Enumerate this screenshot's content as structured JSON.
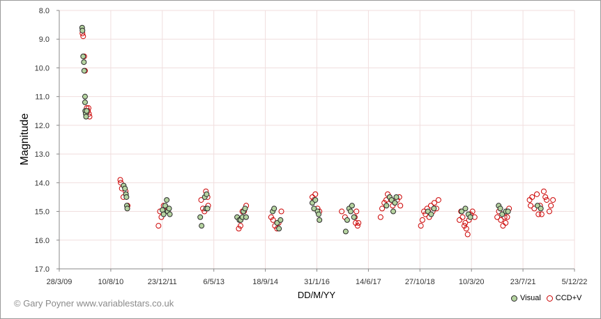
{
  "credit": "© Gary Poyner www.variablestars.co.uk",
  "chart_data": {
    "type": "scatter",
    "title": "",
    "xlabel": "DD/M/YY",
    "ylabel": "Magnitude",
    "y_inverted": true,
    "ylim": [
      17.0,
      8.0
    ],
    "y_ticks": [
      "8.0",
      "9.0",
      "10.0",
      "11.0",
      "12.0",
      "13.0",
      "14.0",
      "15.0",
      "16.0",
      "17.0"
    ],
    "x_ticks": [
      "28/3/09",
      "10/8/10",
      "23/12/11",
      "6/5/13",
      "18/9/14",
      "31/1/16",
      "14/6/17",
      "27/10/18",
      "10/3/20",
      "23/7/21",
      "5/12/22"
    ],
    "grid": true,
    "legend_position": "bottom-right",
    "series": [
      {
        "name": "Visual",
        "marker": "filled-circle",
        "fill": "#b5d3a0",
        "edge": "#2a2a2a",
        "points": [
          [
            "2009-11-05",
            8.6
          ],
          [
            "2009-11-08",
            8.7
          ],
          [
            "2009-11-15",
            9.6
          ],
          [
            "2009-11-22",
            9.8
          ],
          [
            "2009-11-25",
            10.1
          ],
          [
            "2009-12-03",
            11.0
          ],
          [
            "2009-12-03",
            11.2
          ],
          [
            "2009-12-05",
            11.5
          ],
          [
            "2009-12-10",
            11.6
          ],
          [
            "2009-12-13",
            11.7
          ],
          [
            "2009-12-19",
            11.5
          ],
          [
            "2010-12-13",
            14.1
          ],
          [
            "2010-12-25",
            14.2
          ],
          [
            "2011-01-04",
            14.4
          ],
          [
            "2011-01-09",
            14.5
          ],
          [
            "2011-01-13",
            14.8
          ],
          [
            "2011-01-17",
            14.9
          ],
          [
            "2011-12-25",
            14.95
          ],
          [
            "2012-01-05",
            15.1
          ],
          [
            "2012-01-20",
            14.8
          ],
          [
            "2012-02-04",
            14.6
          ],
          [
            "2012-02-14",
            15.0
          ],
          [
            "2012-02-27",
            14.9
          ],
          [
            "2012-03-05",
            15.1
          ],
          [
            "2012-12-25",
            15.2
          ],
          [
            "2013-01-07",
            15.5
          ],
          [
            "2013-02-07",
            14.5
          ],
          [
            "2013-02-20",
            14.9
          ],
          [
            "2013-03-05",
            14.9
          ],
          [
            "2013-02-25",
            14.4
          ],
          [
            "2013-12-18",
            15.2
          ],
          [
            "2014-01-09",
            15.3
          ],
          [
            "2014-01-21",
            15.3
          ],
          [
            "2014-02-08",
            15.2
          ],
          [
            "2014-02-18",
            15.0
          ],
          [
            "2014-03-05",
            14.9
          ],
          [
            "2014-03-15",
            15.2
          ],
          [
            "2014-11-28",
            15.0
          ],
          [
            "2014-12-12",
            14.9
          ],
          [
            "2015-01-10",
            15.4
          ],
          [
            "2015-01-28",
            15.6
          ],
          [
            "2015-02-12",
            15.3
          ],
          [
            "2015-12-18",
            14.7
          ],
          [
            "2016-01-03",
            14.9
          ],
          [
            "2016-01-16",
            14.6
          ],
          [
            "2016-02-07",
            15.0
          ],
          [
            "2016-02-17",
            15.1
          ],
          [
            "2016-02-25",
            15.3
          ],
          [
            "2016-11-06",
            15.7
          ],
          [
            "2016-11-20",
            15.3
          ],
          [
            "2016-12-09",
            14.9
          ],
          [
            "2016-12-24",
            15.0
          ],
          [
            "2017-01-06",
            14.8
          ],
          [
            "2017-01-25",
            15.2
          ],
          [
            "2017-12-06",
            14.8
          ],
          [
            "2018-01-06",
            14.5
          ],
          [
            "2018-01-25",
            14.6
          ],
          [
            "2018-02-10",
            15.0
          ],
          [
            "2018-02-26",
            14.7
          ],
          [
            "2018-03-12",
            14.5
          ],
          [
            "2019-01-13",
            15.0
          ],
          [
            "2019-02-13",
            15.1
          ],
          [
            "2019-03-12",
            14.9
          ],
          [
            "2019-12-06",
            15.0
          ],
          [
            "2020-01-11",
            14.9
          ],
          [
            "2020-02-09",
            15.1
          ],
          [
            "2020-02-28",
            15.2
          ],
          [
            "2020-11-29",
            14.8
          ],
          [
            "2020-12-15",
            14.9
          ],
          [
            "2021-01-02",
            15.1
          ],
          [
            "2021-02-07",
            15.0
          ],
          [
            "2021-02-28",
            15.0
          ],
          [
            "2021-12-11",
            14.8
          ],
          [
            "2022-01-12",
            14.9
          ]
        ]
      },
      {
        "name": "CCD+V",
        "marker": "open-circle",
        "edge": "#cc0000",
        "points": [
          [
            "2009-11-08",
            8.8
          ],
          [
            "2009-11-15",
            8.9
          ],
          [
            "2009-11-25",
            9.6
          ],
          [
            "2009-12-03",
            10.1
          ],
          [
            "2009-12-19",
            11.4
          ],
          [
            "2009-12-31",
            11.5
          ],
          [
            "2010-01-06",
            11.4
          ],
          [
            "2010-01-10",
            11.6
          ],
          [
            "2010-01-16",
            11.7
          ],
          [
            "2010-11-10",
            13.9
          ],
          [
            "2010-11-15",
            14.0
          ],
          [
            "2010-11-25",
            14.2
          ],
          [
            "2010-12-10",
            14.5
          ],
          [
            "2011-01-01",
            14.3
          ],
          [
            "2011-01-20",
            14.8
          ],
          [
            "2011-11-16",
            15.5
          ],
          [
            "2011-11-30",
            15.0
          ],
          [
            "2011-12-14",
            15.2
          ],
          [
            "2012-01-05",
            14.8
          ],
          [
            "2012-01-20",
            15.0
          ],
          [
            "2012-02-18",
            14.9
          ],
          [
            "2013-01-03",
            14.6
          ],
          [
            "2013-01-20",
            14.9
          ],
          [
            "2013-02-04",
            15.0
          ],
          [
            "2013-02-18",
            14.3
          ],
          [
            "2013-03-06",
            14.5
          ],
          [
            "2013-03-12",
            14.8
          ],
          [
            "2014-01-03",
            15.6
          ],
          [
            "2014-01-20",
            15.5
          ],
          [
            "2014-02-07",
            15.0
          ],
          [
            "2014-02-23",
            15.0
          ],
          [
            "2014-03-16",
            14.8
          ],
          [
            "2014-11-13",
            15.2
          ],
          [
            "2014-12-02",
            15.3
          ],
          [
            "2014-12-20",
            15.5
          ],
          [
            "2015-01-10",
            15.6
          ],
          [
            "2015-01-25",
            15.4
          ],
          [
            "2015-02-20",
            15.0
          ],
          [
            "2015-12-18",
            14.5
          ],
          [
            "2016-01-03",
            14.6
          ],
          [
            "2016-01-16",
            14.4
          ],
          [
            "2016-02-07",
            14.9
          ],
          [
            "2016-02-25",
            15.0
          ],
          [
            "2016-09-28",
            15.0
          ],
          [
            "2016-10-30",
            15.2
          ],
          [
            "2017-02-02",
            15.2
          ],
          [
            "2017-02-10",
            15.4
          ],
          [
            "2017-02-18",
            15.0
          ],
          [
            "2017-03-01",
            15.5
          ],
          [
            "2017-03-10",
            15.4
          ],
          [
            "2017-10-10",
            15.2
          ],
          [
            "2017-10-25",
            14.9
          ],
          [
            "2017-11-15",
            14.7
          ],
          [
            "2017-12-04",
            14.6
          ],
          [
            "2017-12-18",
            14.4
          ],
          [
            "2018-01-06",
            14.5
          ],
          [
            "2018-01-20",
            14.6
          ],
          [
            "2018-02-05",
            14.8
          ],
          [
            "2018-02-25",
            14.7
          ],
          [
            "2018-03-20",
            14.6
          ],
          [
            "2018-04-10",
            14.5
          ],
          [
            "2018-04-20",
            14.8
          ],
          [
            "2018-11-05",
            15.5
          ],
          [
            "2018-11-20",
            15.3
          ],
          [
            "2018-12-05",
            15.0
          ],
          [
            "2018-12-20",
            15.1
          ],
          [
            "2019-01-05",
            14.9
          ],
          [
            "2019-01-25",
            15.2
          ],
          [
            "2019-02-10",
            14.8
          ],
          [
            "2019-02-28",
            15.0
          ],
          [
            "2019-03-16",
            14.7
          ],
          [
            "2019-04-05",
            14.9
          ],
          [
            "2019-04-25",
            14.6
          ],
          [
            "2019-11-15",
            15.3
          ],
          [
            "2019-11-30",
            15.0
          ],
          [
            "2019-12-15",
            15.2
          ],
          [
            "2020-01-01",
            15.5
          ],
          [
            "2020-01-10",
            15.4
          ],
          [
            "2020-01-20",
            15.6
          ],
          [
            "2020-02-02",
            15.8
          ],
          [
            "2020-02-15",
            15.3
          ],
          [
            "2020-03-01",
            15.1
          ],
          [
            "2020-03-20",
            15.0
          ],
          [
            "2020-04-10",
            15.2
          ],
          [
            "2020-11-15",
            15.2
          ],
          [
            "2020-12-01",
            15.0
          ],
          [
            "2020-12-20",
            15.3
          ],
          [
            "2021-01-10",
            15.5
          ],
          [
            "2021-01-25",
            15.2
          ],
          [
            "2021-02-05",
            15.4
          ],
          [
            "2021-02-20",
            15.2
          ],
          [
            "2021-03-10",
            14.9
          ],
          [
            "2021-09-25",
            14.6
          ],
          [
            "2021-10-05",
            14.8
          ],
          [
            "2021-10-20",
            14.5
          ],
          [
            "2021-11-10",
            14.9
          ],
          [
            "2021-12-05",
            14.4
          ],
          [
            "2021-12-20",
            15.1
          ],
          [
            "2022-01-05",
            14.8
          ],
          [
            "2022-01-20",
            15.1
          ],
          [
            "2022-02-10",
            14.3
          ],
          [
            "2022-02-25",
            14.5
          ],
          [
            "2022-03-10",
            14.6
          ],
          [
            "2022-04-05",
            15.0
          ],
          [
            "2022-04-20",
            14.8
          ],
          [
            "2022-05-10",
            14.6
          ]
        ]
      }
    ]
  }
}
